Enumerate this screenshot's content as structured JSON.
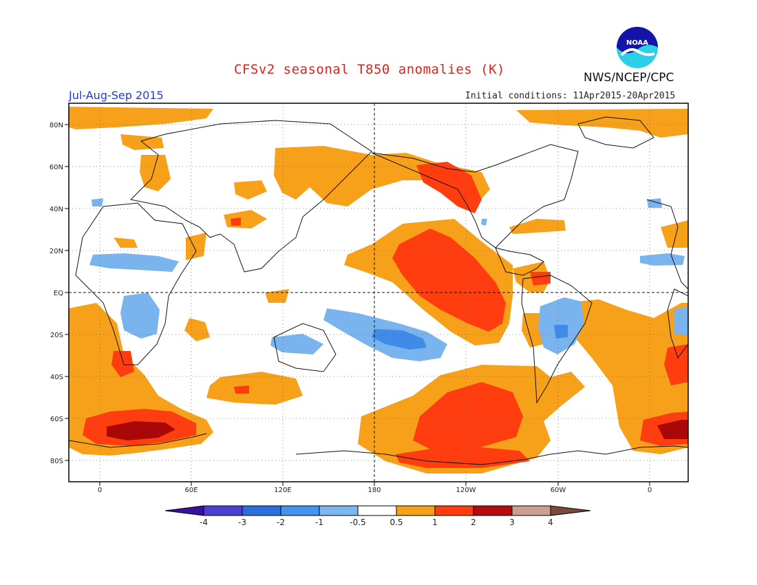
{
  "header": {
    "title": "CFSv2 seasonal T850 anomalies (K)",
    "agency": "NWS/NCEP/CPC",
    "season": "Jul-Aug-Sep 2015",
    "initial_conditions": "Initial conditions: 11Apr2015-20Apr2015",
    "logo_text": "NOAA"
  },
  "map": {
    "projection": "equirectangular, centered on 180",
    "lat_labels": [
      "80N",
      "60N",
      "40N",
      "20N",
      "EQ",
      "20S",
      "40S",
      "60S",
      "80S"
    ],
    "lon_labels": [
      "0",
      "60E",
      "120E",
      "180",
      "120W",
      "60W",
      "0"
    ]
  },
  "colorbar": {
    "labels": [
      "-4",
      "-3",
      "-2",
      "-1",
      "-0.5",
      "0.5",
      "1",
      "2",
      "3",
      "4"
    ],
    "colors": [
      "#3a10a0",
      "#4b3fd6",
      "#2c6ee0",
      "#4494ef",
      "#7bb8f0",
      "#ffffff",
      "#f7a01a",
      "#ff3d0e",
      "#b50b0b",
      "#c9a090",
      "#7a4a3a"
    ]
  },
  "colors": {
    "orange": "#f7a01a",
    "red": "#ff3d0e",
    "dark_red": "#a80808",
    "light_blue": "#79b4ee",
    "blue": "#3f8be8",
    "title_red": "#e0201a",
    "season_blue": "#1d3ad9"
  }
}
